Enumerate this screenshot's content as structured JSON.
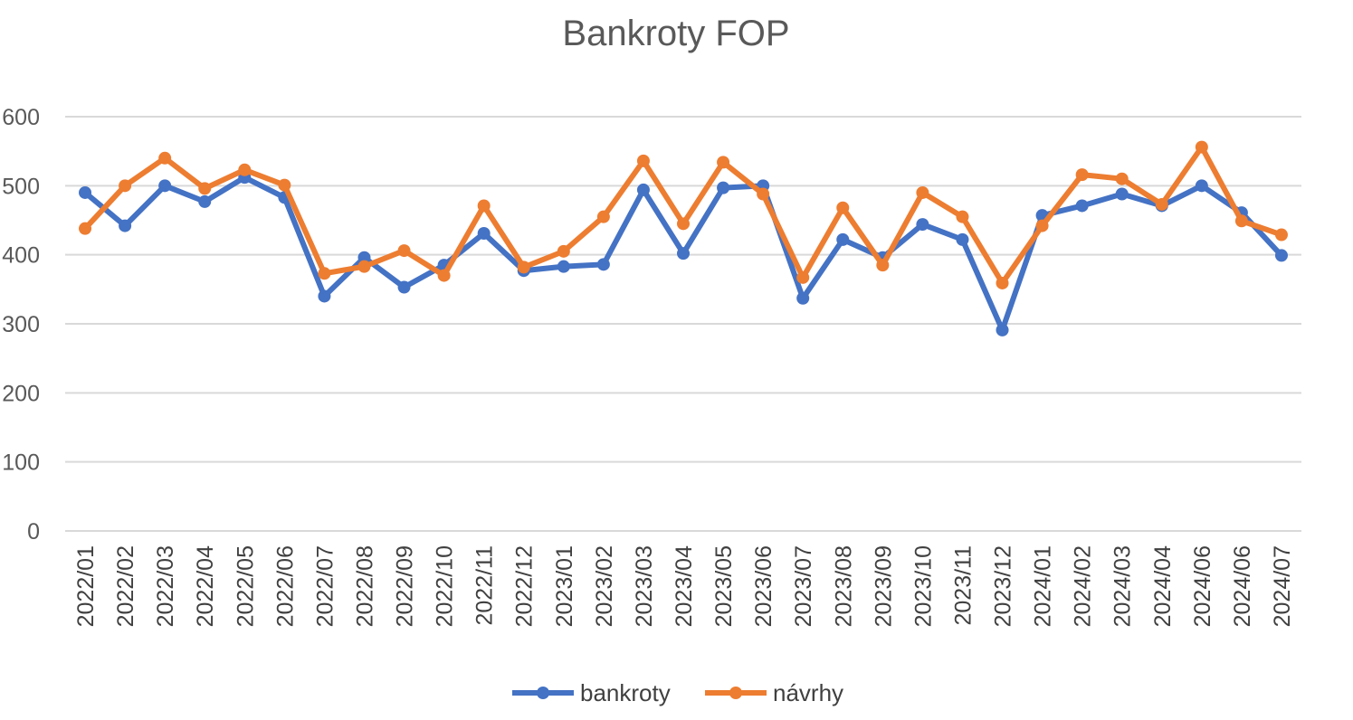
{
  "chart_data": {
    "type": "line",
    "title": "Bankroty FOP",
    "xlabel": "",
    "ylabel": "",
    "ylim": [
      0,
      600
    ],
    "yticks": [
      0,
      100,
      200,
      300,
      400,
      500,
      600
    ],
    "grid": "horizontal",
    "legend_position": "bottom",
    "categories": [
      "2022/01",
      "2022/02",
      "2022/03",
      "2022/04",
      "2022/05",
      "2022/06",
      "2022/07",
      "2022/08",
      "2022/09",
      "2022/10",
      "2022/11",
      "2022/12",
      "2023/01",
      "2023/02",
      "2023/03",
      "2023/04",
      "2023/05",
      "2023/06",
      "2023/07",
      "2023/08",
      "2023/09",
      "2023/10",
      "2023/11",
      "2023/12",
      "2024/01",
      "2024/02",
      "2024/03",
      "2024/04",
      "2024/06",
      "2024/06",
      "2024/07"
    ],
    "series": [
      {
        "name": "bankroty",
        "color": "#4472c4",
        "values": [
          490,
          442,
          500,
          477,
          512,
          483,
          340,
          396,
          353,
          385,
          431,
          377,
          383,
          386,
          494,
          402,
          497,
          500,
          337,
          422,
          396,
          444,
          422,
          291,
          457,
          471,
          488,
          471,
          500,
          461,
          399
        ]
      },
      {
        "name": "návrhy",
        "color": "#ed7d31",
        "values": [
          438,
          500,
          540,
          496,
          523,
          501,
          373,
          383,
          406,
          370,
          471,
          382,
          405,
          455,
          536,
          445,
          534,
          488,
          367,
          468,
          385,
          490,
          455,
          359,
          442,
          516,
          510,
          473,
          556,
          449,
          429
        ]
      }
    ]
  }
}
